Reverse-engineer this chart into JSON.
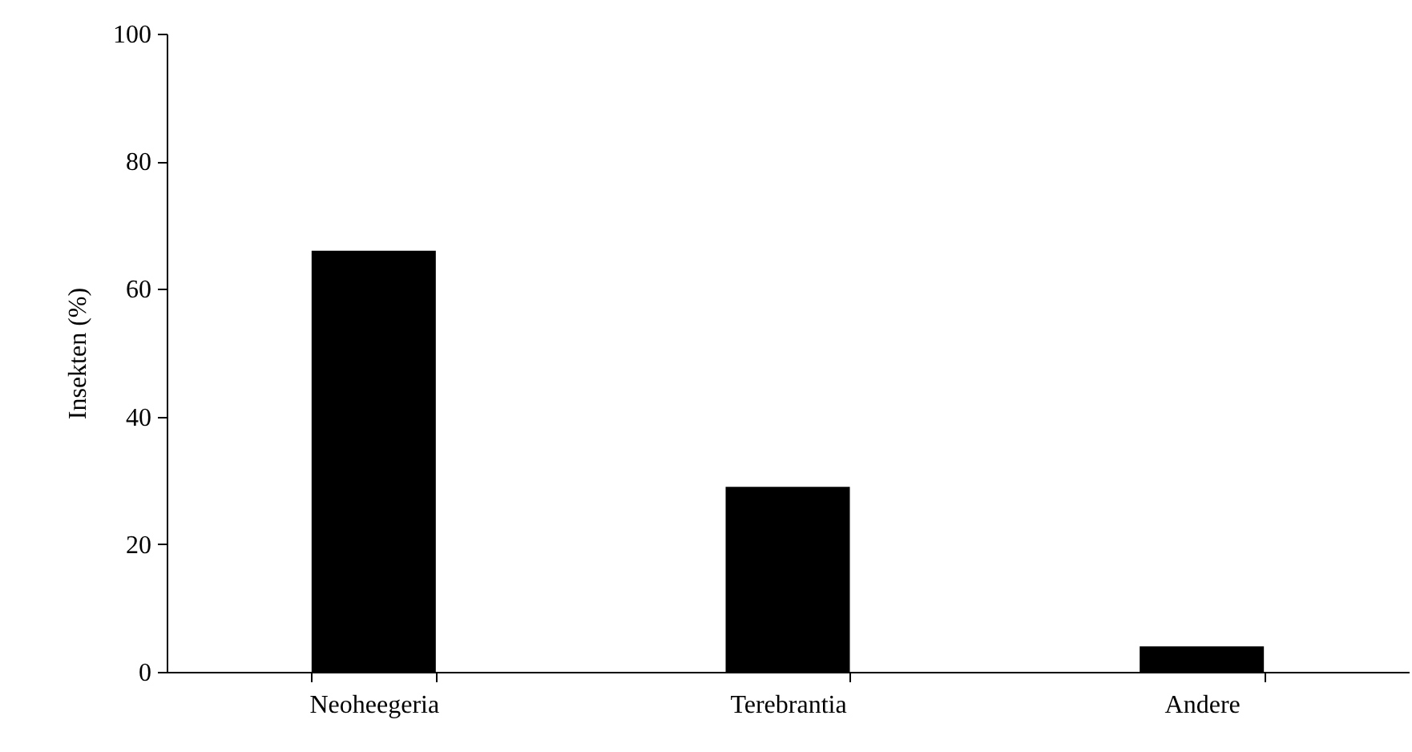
{
  "chart_data": {
    "type": "bar",
    "ylabel": "Insekten (%)",
    "categories": [
      "Neoheegeria",
      "Terebrantia",
      "Andere"
    ],
    "values": [
      66,
      29,
      4
    ],
    "color": "#000000",
    "ylim": [
      0,
      100
    ],
    "yticks": [
      0,
      20,
      40,
      60,
      80,
      100
    ],
    "grid": false
  }
}
